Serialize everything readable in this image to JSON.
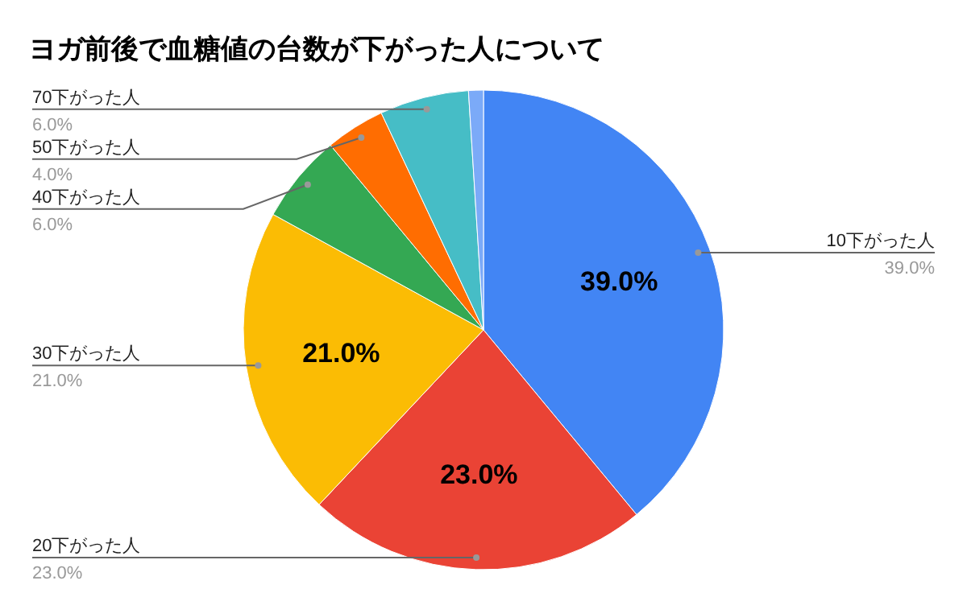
{
  "chart_data": {
    "type": "pie",
    "title": "ヨガ前後で血糖値の台数が下がった人について",
    "categories": [
      "10下がった人",
      "20下がった人",
      "30下がった人",
      "40下がった人",
      "50下がった人",
      "70下がった人",
      null
    ],
    "values": [
      39,
      23,
      21,
      6,
      4,
      6,
      1
    ],
    "colors": [
      "#4285f4",
      "#ea4335",
      "#fbbc04",
      "#34a853",
      "#ff6d01",
      "#46bdc6",
      "#7baaf8"
    ],
    "value_labels": [
      "39.0%",
      "23.0%",
      "21.0%",
      "6.0%",
      "4.0%",
      "6.0%",
      null
    ]
  }
}
